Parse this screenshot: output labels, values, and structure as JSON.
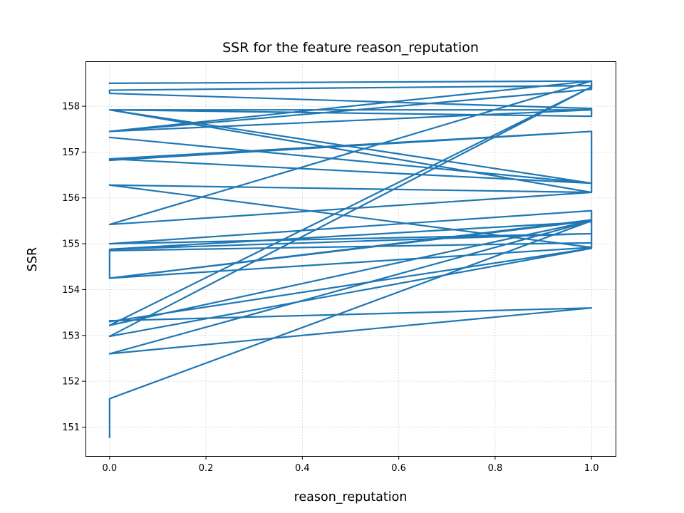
{
  "chart_data": {
    "type": "line",
    "title": "SSR for the feature reason_reputation",
    "xlabel": "reason_reputation",
    "ylabel": "SSR",
    "xlim": [
      -0.05,
      1.05
    ],
    "ylim": [
      150.37,
      158.98
    ],
    "xticks": [
      0.0,
      0.2,
      0.4,
      0.6,
      0.8,
      1.0
    ],
    "xtick_labels": [
      "0.0",
      "0.2",
      "0.4",
      "0.6",
      "0.8",
      "1.0"
    ],
    "yticks": [
      151,
      152,
      153,
      154,
      155,
      156,
      157,
      158
    ],
    "ytick_labels": [
      "151",
      "152",
      "153",
      "154",
      "155",
      "156",
      "157",
      "158"
    ],
    "grid": true,
    "series": [
      {
        "color": "#1f77b4",
        "x": [
          0,
          1,
          1,
          0,
          0,
          1,
          1,
          0,
          1,
          0,
          1,
          1,
          0,
          1,
          0,
          1,
          1,
          0,
          0,
          1,
          1,
          0,
          1,
          0,
          1,
          1,
          0,
          0,
          1,
          1,
          0,
          1,
          0,
          1,
          1,
          0,
          1,
          0,
          1,
          1,
          0,
          1,
          0,
          1,
          1,
          0,
          1,
          0,
          0,
          1,
          0,
          1,
          0,
          0
        ],
        "y": [
          158.5,
          158.55,
          158.45,
          158.35,
          158.28,
          157.95,
          157.78,
          157.92,
          156.12,
          156.28,
          154.92,
          155.72,
          155.0,
          155.22,
          154.88,
          155.48,
          155.02,
          154.85,
          154.25,
          155.52,
          154.92,
          154.25,
          155.5,
          153.22,
          158.42,
          158.37,
          157.45,
          157.45,
          157.92,
          157.92,
          157.92,
          156.32,
          157.32,
          156.32,
          157.45,
          156.82,
          157.45,
          156.85,
          156.32,
          156.12,
          155.42,
          158.55,
          157.45,
          158.55,
          158.42,
          152.98,
          154.9,
          153.3,
          153.32,
          153.6,
          152.6,
          155.5,
          151.62,
          150.78
        ]
      }
    ]
  }
}
